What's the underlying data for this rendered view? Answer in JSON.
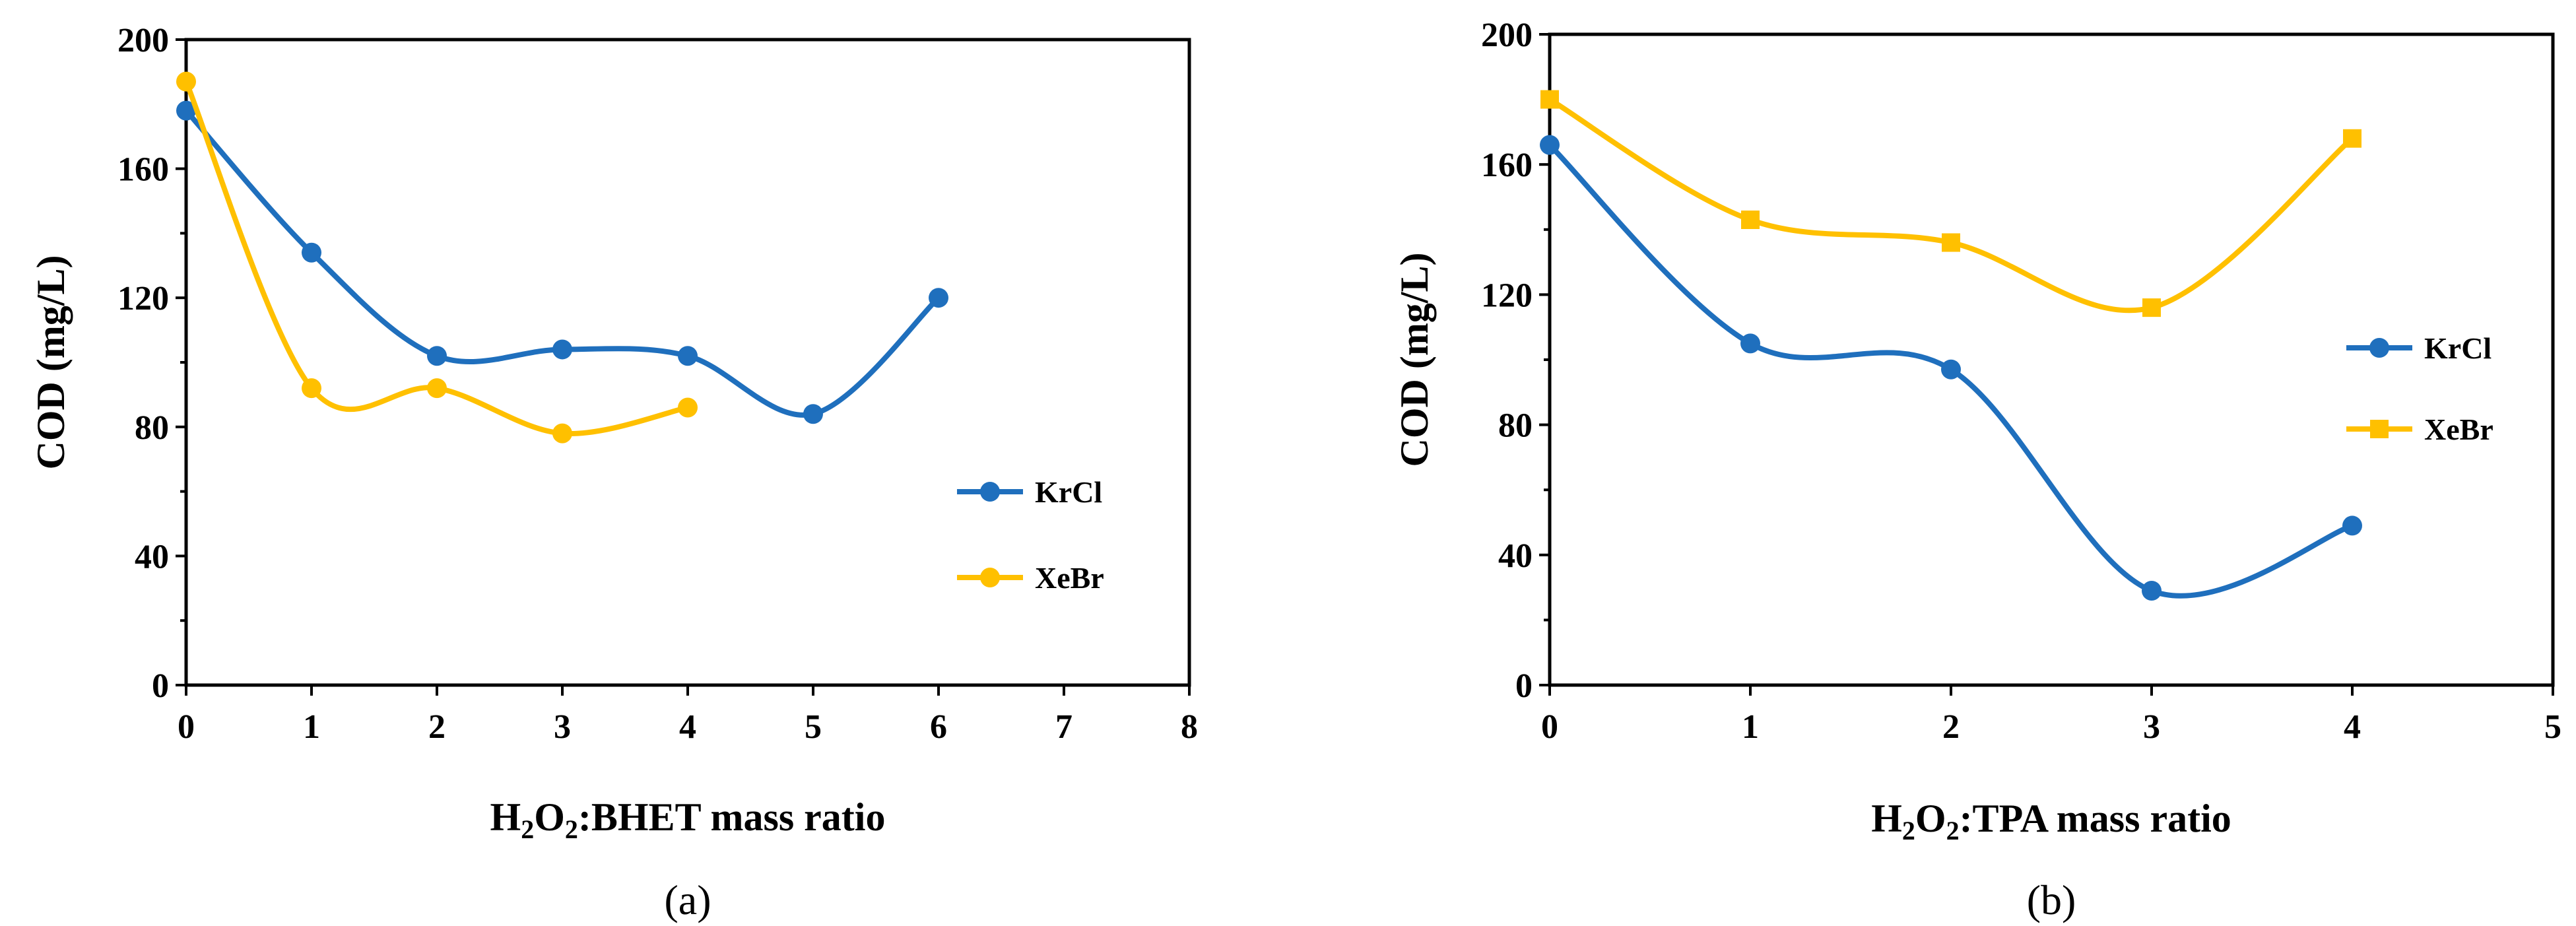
{
  "chart_data": [
    {
      "type": "line",
      "panel_label": "(a)",
      "xlabel": "H2O2:BHET mass ratio",
      "xlabel_parts": {
        "prefix": "H",
        "sub1": "2",
        "mid": "O",
        "sub2": "2",
        "suffix": ":BHET mass ratio"
      },
      "ylabel": "COD (mg/L)",
      "xlim": [
        0,
        8
      ],
      "ylim": [
        0,
        200
      ],
      "x_ticks": [
        0,
        1,
        2,
        3,
        4,
        5,
        6,
        7,
        8
      ],
      "y_ticks": [
        0,
        40,
        80,
        120,
        160,
        200
      ],
      "legend_position": "right",
      "series": [
        {
          "name": "KrCl",
          "color": "#1f6fbd",
          "marker": "circle",
          "x": [
            0,
            1,
            2,
            3,
            4,
            5,
            6
          ],
          "values": [
            178,
            134,
            102,
            104,
            102,
            84,
            120
          ]
        },
        {
          "name": "XeBr",
          "color": "#ffc000",
          "marker": "circle",
          "x": [
            0,
            1,
            2,
            3,
            4
          ],
          "values": [
            187,
            92,
            92,
            78,
            86
          ]
        }
      ]
    },
    {
      "type": "line",
      "panel_label": "(b)",
      "xlabel": "H2O2:TPA mass ratio",
      "xlabel_parts": {
        "prefix": "H",
        "sub1": "2",
        "mid": "O",
        "sub2": "2",
        "suffix": ":TPA mass ratio"
      },
      "ylabel": "COD (mg/L)",
      "xlim": [
        0,
        5
      ],
      "ylim": [
        0,
        200
      ],
      "x_ticks": [
        0,
        1,
        2,
        3,
        4,
        5
      ],
      "y_ticks": [
        0,
        40,
        80,
        120,
        160,
        200
      ],
      "legend_position": "right",
      "series": [
        {
          "name": "KrCl",
          "color": "#1f6fbd",
          "marker": "circle",
          "x": [
            0,
            1,
            2,
            3,
            4
          ],
          "values": [
            166,
            105,
            97,
            29,
            49
          ]
        },
        {
          "name": "XeBr",
          "color": "#ffc000",
          "marker": "square",
          "x": [
            0,
            1,
            2,
            3,
            4
          ],
          "values": [
            180,
            143,
            136,
            116,
            168
          ]
        }
      ]
    }
  ]
}
